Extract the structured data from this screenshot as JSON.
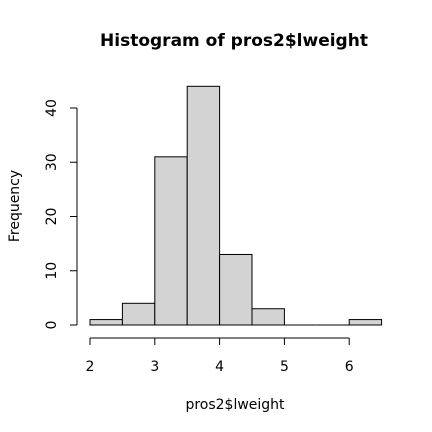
{
  "chart_data": {
    "type": "bar",
    "title": "Histogram of pros2$lweight",
    "xlabel": "pros2$lweight",
    "ylabel": "Frequency",
    "bin_edges": [
      2.0,
      2.5,
      3.0,
      3.5,
      4.0,
      4.5,
      5.0,
      5.5,
      6.0,
      6.5
    ],
    "values": [
      1,
      4,
      31,
      44,
      13,
      3,
      0,
      0,
      1
    ],
    "x_ticks": [
      2,
      3,
      4,
      5,
      6
    ],
    "y_ticks": [
      0,
      10,
      20,
      30,
      40
    ],
    "xlim": [
      2,
      6.5
    ],
    "ylim": [
      0,
      44
    ],
    "bar_color": "#d3d3d3",
    "grid": false,
    "legend": "none"
  }
}
